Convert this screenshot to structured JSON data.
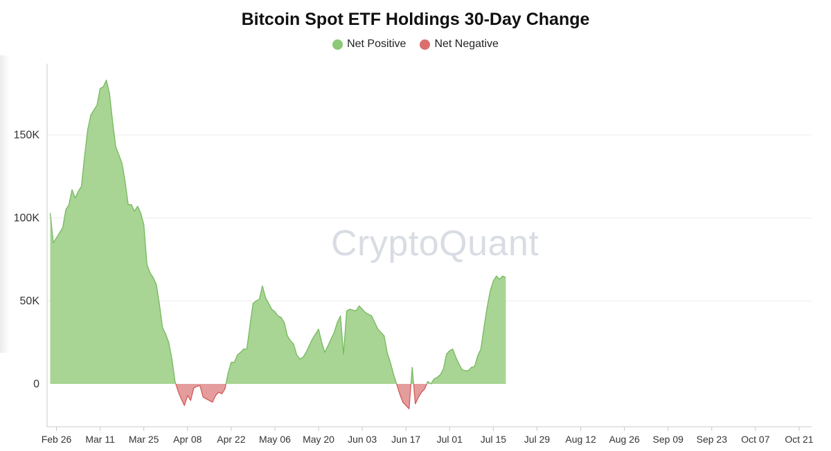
{
  "chart_data": {
    "type": "area",
    "title": "Bitcoin Spot ETF Holdings 30-Day Change",
    "legend": {
      "placement": "top-center",
      "items": [
        {
          "label": "Net Positive",
          "color": "#8cc878"
        },
        {
          "label": "Net Negative",
          "color": "#dc6e6e"
        }
      ]
    },
    "colors": {
      "positive_fill": "#a8d494",
      "positive_line": "#76b95f",
      "negative_fill": "#e59c9c",
      "negative_line": "#d25a5a",
      "grid": "#eeeeee",
      "axis": "#c8c8c8"
    },
    "watermark": "CryptoQuant",
    "grid": true,
    "xlabel": "",
    "ylabel": "",
    "ylim": [
      -25000,
      193000
    ],
    "y_ticks": [
      {
        "value": 0,
        "label": "0"
      },
      {
        "value": 50000,
        "label": "50K"
      },
      {
        "value": 100000,
        "label": "100K"
      },
      {
        "value": 150000,
        "label": "150K"
      }
    ],
    "x_range": [
      "2024-02-23",
      "2024-10-25"
    ],
    "x_ticks": [
      {
        "date": "2024-02-26",
        "label": "Feb 26"
      },
      {
        "date": "2024-03-11",
        "label": "Mar 11"
      },
      {
        "date": "2024-03-25",
        "label": "Mar 25"
      },
      {
        "date": "2024-04-08",
        "label": "Apr 08"
      },
      {
        "date": "2024-04-22",
        "label": "Apr 22"
      },
      {
        "date": "2024-05-06",
        "label": "May 06"
      },
      {
        "date": "2024-05-20",
        "label": "May 20"
      },
      {
        "date": "2024-06-03",
        "label": "Jun 03"
      },
      {
        "date": "2024-06-17",
        "label": "Jun 17"
      },
      {
        "date": "2024-07-01",
        "label": "Jul 01"
      },
      {
        "date": "2024-07-15",
        "label": "Jul 15"
      },
      {
        "date": "2024-07-29",
        "label": "Jul 29"
      },
      {
        "date": "2024-08-12",
        "label": "Aug 12"
      },
      {
        "date": "2024-08-26",
        "label": "Aug 26"
      },
      {
        "date": "2024-09-09",
        "label": "Sep 09"
      },
      {
        "date": "2024-09-23",
        "label": "Sep 23"
      },
      {
        "date": "2024-10-07",
        "label": "Oct 07"
      },
      {
        "date": "2024-10-21",
        "label": "Oct 21"
      }
    ],
    "series": [
      {
        "points": [
          [
            "2024-02-24",
            103000
          ],
          [
            "2024-02-25",
            85000
          ],
          [
            "2024-02-26",
            88000
          ],
          [
            "2024-02-27",
            91000
          ],
          [
            "2024-02-28",
            94000
          ],
          [
            "2024-02-29",
            105000
          ],
          [
            "2024-03-01",
            108000
          ],
          [
            "2024-03-02",
            117000
          ],
          [
            "2024-03-03",
            112000
          ],
          [
            "2024-03-04",
            116000
          ],
          [
            "2024-03-05",
            119000
          ],
          [
            "2024-03-06",
            137000
          ],
          [
            "2024-03-07",
            153000
          ],
          [
            "2024-03-08",
            162000
          ],
          [
            "2024-03-09",
            165000
          ],
          [
            "2024-03-10",
            168000
          ],
          [
            "2024-03-11",
            178000
          ],
          [
            "2024-03-12",
            179000
          ],
          [
            "2024-03-13",
            183000
          ],
          [
            "2024-03-14",
            175000
          ],
          [
            "2024-03-15",
            158000
          ],
          [
            "2024-03-16",
            143000
          ],
          [
            "2024-03-17",
            138000
          ],
          [
            "2024-03-18",
            133000
          ],
          [
            "2024-03-19",
            122000
          ],
          [
            "2024-03-20",
            108000
          ],
          [
            "2024-03-21",
            108000
          ],
          [
            "2024-03-22",
            104000
          ],
          [
            "2024-03-23",
            107000
          ],
          [
            "2024-03-24",
            103000
          ],
          [
            "2024-03-25",
            96000
          ],
          [
            "2024-03-26",
            72000
          ],
          [
            "2024-03-27",
            67000
          ],
          [
            "2024-03-28",
            64000
          ],
          [
            "2024-03-29",
            60000
          ],
          [
            "2024-03-30",
            48000
          ],
          [
            "2024-03-31",
            34000
          ],
          [
            "2024-04-01",
            30000
          ],
          [
            "2024-04-02",
            25000
          ],
          [
            "2024-04-03",
            15000
          ],
          [
            "2024-04-04",
            1500
          ],
          [
            "2024-04-05",
            -4500
          ],
          [
            "2024-04-06",
            -9000
          ],
          [
            "2024-04-07",
            -13000
          ],
          [
            "2024-04-08",
            -7000
          ],
          [
            "2024-04-09",
            -10000
          ],
          [
            "2024-04-10",
            -2500
          ],
          [
            "2024-04-11",
            -1500
          ],
          [
            "2024-04-12",
            -1000
          ],
          [
            "2024-04-13",
            -8000
          ],
          [
            "2024-04-14",
            -9000
          ],
          [
            "2024-04-15",
            -10000
          ],
          [
            "2024-04-16",
            -11000
          ],
          [
            "2024-04-17",
            -7000
          ],
          [
            "2024-04-18",
            -5000
          ],
          [
            "2024-04-19",
            -6000
          ],
          [
            "2024-04-20",
            -3000
          ],
          [
            "2024-04-21",
            6500
          ],
          [
            "2024-04-22",
            13000
          ],
          [
            "2024-04-23",
            13000
          ],
          [
            "2024-04-24",
            17500
          ],
          [
            "2024-04-25",
            19000
          ],
          [
            "2024-04-26",
            21000
          ],
          [
            "2024-04-27",
            21000
          ],
          [
            "2024-04-28",
            35000
          ],
          [
            "2024-04-29",
            48500
          ],
          [
            "2024-04-30",
            50000
          ],
          [
            "2024-05-01",
            51000
          ],
          [
            "2024-05-02",
            59000
          ],
          [
            "2024-05-03",
            52000
          ],
          [
            "2024-05-04",
            48500
          ],
          [
            "2024-05-05",
            45000
          ],
          [
            "2024-05-06",
            43500
          ],
          [
            "2024-05-07",
            41000
          ],
          [
            "2024-05-08",
            40000
          ],
          [
            "2024-05-09",
            37000
          ],
          [
            "2024-05-10",
            29000
          ],
          [
            "2024-05-11",
            26000
          ],
          [
            "2024-05-12",
            24000
          ],
          [
            "2024-05-13",
            17500
          ],
          [
            "2024-05-14",
            15000
          ],
          [
            "2024-05-15",
            16000
          ],
          [
            "2024-05-16",
            19000
          ],
          [
            "2024-05-17",
            23000
          ],
          [
            "2024-05-18",
            27000
          ],
          [
            "2024-05-19",
            30000
          ],
          [
            "2024-05-20",
            33000
          ],
          [
            "2024-05-21",
            25000
          ],
          [
            "2024-05-22",
            19000
          ],
          [
            "2024-05-23",
            23000
          ],
          [
            "2024-05-24",
            27000
          ],
          [
            "2024-05-25",
            31000
          ],
          [
            "2024-05-26",
            37000
          ],
          [
            "2024-05-27",
            41000
          ],
          [
            "2024-05-28",
            18000
          ],
          [
            "2024-05-29",
            44000
          ],
          [
            "2024-05-30",
            45000
          ],
          [
            "2024-05-31",
            44500
          ],
          [
            "2024-06-01",
            44000
          ],
          [
            "2024-06-02",
            47000
          ],
          [
            "2024-06-03",
            45000
          ],
          [
            "2024-06-04",
            43000
          ],
          [
            "2024-06-05",
            42000
          ],
          [
            "2024-06-06",
            41000
          ],
          [
            "2024-06-07",
            37000
          ],
          [
            "2024-06-08",
            33000
          ],
          [
            "2024-06-09",
            31000
          ],
          [
            "2024-06-10",
            29000
          ],
          [
            "2024-06-11",
            19000
          ],
          [
            "2024-06-12",
            13000
          ],
          [
            "2024-06-13",
            6000
          ],
          [
            "2024-06-14",
            0
          ],
          [
            "2024-06-15",
            -6000
          ],
          [
            "2024-06-16",
            -11000
          ],
          [
            "2024-06-17",
            -13000
          ],
          [
            "2024-06-18",
            -15000
          ],
          [
            "2024-06-19",
            10000
          ],
          [
            "2024-06-20",
            -12000
          ],
          [
            "2024-06-21",
            -8000
          ],
          [
            "2024-06-22",
            -5000
          ],
          [
            "2024-06-23",
            -3000
          ],
          [
            "2024-06-24",
            1500
          ],
          [
            "2024-06-25",
            0
          ],
          [
            "2024-06-26",
            3000
          ],
          [
            "2024-06-27",
            4000
          ],
          [
            "2024-06-28",
            5500
          ],
          [
            "2024-06-29",
            9000
          ],
          [
            "2024-06-30",
            18000
          ],
          [
            "2024-07-01",
            20000
          ],
          [
            "2024-07-02",
            21000
          ],
          [
            "2024-07-03",
            16000
          ],
          [
            "2024-07-04",
            12000
          ],
          [
            "2024-07-05",
            8500
          ],
          [
            "2024-07-06",
            8000
          ],
          [
            "2024-07-07",
            8000
          ],
          [
            "2024-07-08",
            10000
          ],
          [
            "2024-07-09",
            10500
          ],
          [
            "2024-07-10",
            17000
          ],
          [
            "2024-07-11",
            21000
          ],
          [
            "2024-07-12",
            34000
          ],
          [
            "2024-07-13",
            46000
          ],
          [
            "2024-07-14",
            56000
          ],
          [
            "2024-07-15",
            62000
          ],
          [
            "2024-07-16",
            65000
          ],
          [
            "2024-07-17",
            63000
          ],
          [
            "2024-07-18",
            65000
          ],
          [
            "2024-07-19",
            64000
          ]
        ]
      }
    ]
  }
}
